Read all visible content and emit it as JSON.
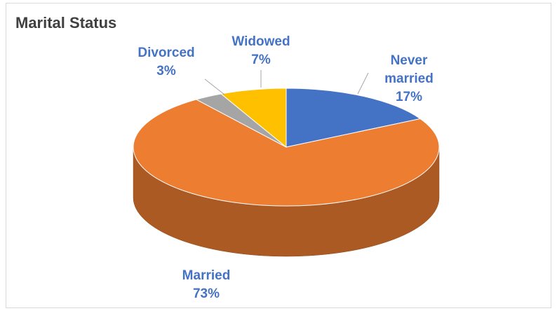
{
  "chart_data": {
    "type": "pie",
    "title": "Marital Status",
    "categories": [
      "Never married",
      "Married",
      "Divorced",
      "Widowed"
    ],
    "values": [
      17,
      73,
      3,
      7
    ],
    "value_labels": [
      "17%",
      "73%",
      "3%",
      "7%"
    ],
    "colors": [
      "#4472c4",
      "#ed7d31",
      "#a5a5a5",
      "#ffc000"
    ]
  }
}
